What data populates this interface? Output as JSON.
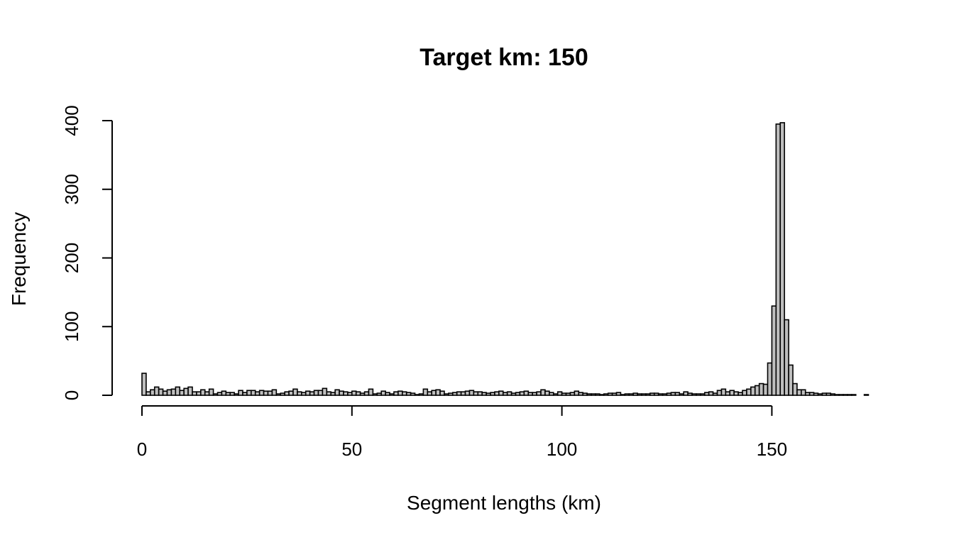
{
  "chart_data": {
    "type": "bar",
    "title": "Target km: 150",
    "xlabel": "Segment lengths (km)",
    "ylabel": "Frequency",
    "xlim": [
      0,
      173
    ],
    "ylim": [
      0,
      400
    ],
    "x_ticks": [
      0,
      50,
      100,
      150
    ],
    "y_ticks": [
      0,
      100,
      200,
      300,
      400
    ],
    "bin_width": 1,
    "bin_start": 0,
    "values": [
      32,
      5,
      8,
      12,
      9,
      6,
      8,
      9,
      12,
      7,
      10,
      12,
      5,
      5,
      8,
      5,
      9,
      2,
      4,
      6,
      4,
      4,
      2,
      7,
      4,
      7,
      7,
      5,
      7,
      6,
      6,
      8,
      2,
      3,
      5,
      6,
      9,
      5,
      4,
      6,
      5,
      7,
      7,
      10,
      5,
      4,
      8,
      6,
      5,
      4,
      6,
      5,
      3,
      5,
      9,
      2,
      3,
      6,
      4,
      2,
      5,
      6,
      5,
      4,
      3,
      1,
      2,
      9,
      5,
      7,
      8,
      6,
      2,
      3,
      4,
      5,
      5,
      6,
      7,
      5,
      5,
      4,
      3,
      4,
      5,
      6,
      4,
      5,
      3,
      4,
      5,
      6,
      4,
      4,
      5,
      8,
      6,
      4,
      2,
      5,
      3,
      3,
      4,
      6,
      4,
      3,
      2,
      2,
      2,
      1,
      2,
      3,
      3,
      4,
      1,
      2,
      2,
      3,
      2,
      2,
      2,
      3,
      3,
      2,
      2,
      3,
      4,
      4,
      2,
      5,
      3,
      2,
      2,
      2,
      4,
      5,
      3,
      7,
      9,
      5,
      7,
      5,
      4,
      7,
      9,
      12,
      14,
      17,
      16,
      47,
      130,
      395,
      397,
      110,
      44,
      17,
      8,
      8,
      4,
      4,
      3,
      2,
      3,
      3,
      2,
      1,
      1,
      1,
      1,
      1,
      0,
      0,
      1
    ]
  }
}
